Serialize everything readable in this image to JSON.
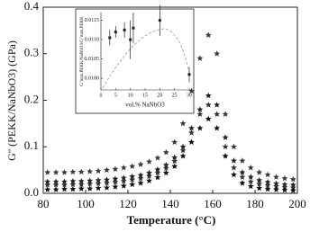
{
  "chart_data": [
    {
      "type": "scatter",
      "xlabel": "Temperature (°C)",
      "ylabel": "G'' (PEKK/NaNbO3) (GPa)",
      "xlim": [
        80,
        200
      ],
      "ylim": [
        0,
        0.4
      ],
      "xticks": [
        80,
        100,
        120,
        140,
        160,
        180,
        200
      ],
      "yticks": [
        {
          "value": 0,
          "label": "0.0"
        },
        0.1,
        0.2,
        0.3,
        0.4
      ],
      "series": [
        {
          "color": "#3a3a3a",
          "x": [
            82,
            86,
            90,
            94,
            98,
            102,
            106,
            110,
            114,
            118,
            122,
            126,
            130,
            134,
            138,
            142,
            146,
            150,
            154,
            158,
            162,
            166,
            170,
            174,
            178,
            182,
            186,
            190,
            194,
            198
          ],
          "values": [
            0.045,
            0.045,
            0.045,
            0.046,
            0.046,
            0.047,
            0.048,
            0.05,
            0.052,
            0.055,
            0.058,
            0.062,
            0.068,
            0.076,
            0.088,
            0.11,
            0.15,
            0.22,
            0.29,
            0.34,
            0.3,
            0.17,
            0.1,
            0.07,
            0.055,
            0.045,
            0.04,
            0.035,
            0.032,
            0.03
          ]
        },
        {
          "color": "#222222",
          "x": [
            82,
            86,
            90,
            94,
            98,
            102,
            106,
            110,
            114,
            118,
            122,
            126,
            130,
            134,
            138,
            142,
            146,
            150,
            154,
            158,
            162,
            166,
            170,
            174,
            178,
            182,
            186,
            190,
            194,
            198
          ],
          "values": [
            0.025,
            0.025,
            0.025,
            0.026,
            0.026,
            0.027,
            0.028,
            0.029,
            0.031,
            0.033,
            0.036,
            0.039,
            0.044,
            0.051,
            0.061,
            0.077,
            0.1,
            0.14,
            0.18,
            0.21,
            0.19,
            0.12,
            0.07,
            0.045,
            0.035,
            0.028,
            0.024,
            0.021,
            0.019,
            0.018
          ]
        },
        {
          "color": "#333333",
          "x": [
            82,
            86,
            90,
            94,
            98,
            102,
            106,
            110,
            114,
            118,
            122,
            126,
            130,
            134,
            138,
            142,
            146,
            150,
            154,
            158,
            162,
            166,
            170,
            174,
            178,
            182,
            186,
            190,
            194,
            198
          ],
          "values": [
            0.018,
            0.018,
            0.018,
            0.019,
            0.019,
            0.02,
            0.021,
            0.022,
            0.024,
            0.026,
            0.029,
            0.032,
            0.037,
            0.044,
            0.054,
            0.069,
            0.092,
            0.13,
            0.17,
            0.19,
            0.17,
            0.1,
            0.055,
            0.035,
            0.025,
            0.02,
            0.017,
            0.015,
            0.013,
            0.012
          ]
        },
        {
          "color": "#111111",
          "x": [
            82,
            86,
            90,
            94,
            98,
            102,
            106,
            110,
            114,
            118,
            122,
            126,
            130,
            134,
            138,
            142,
            146,
            150,
            154,
            158,
            162,
            166,
            170,
            174,
            178,
            182,
            186,
            190,
            194,
            198
          ],
          "values": [
            0.008,
            0.008,
            0.009,
            0.009,
            0.01,
            0.01,
            0.011,
            0.012,
            0.014,
            0.016,
            0.019,
            0.022,
            0.027,
            0.034,
            0.044,
            0.058,
            0.08,
            0.11,
            0.14,
            0.16,
            0.14,
            0.08,
            0.04,
            0.022,
            0.015,
            0.011,
            0.009,
            0.008,
            0.007,
            0.006
          ]
        }
      ]
    },
    {
      "type": "errorbar",
      "xlabel": "vol.% NaNbO3",
      "ylabel": "G''max,PEKK/NaNbO3/G''max,PEKK",
      "xlim": [
        0,
        30
      ],
      "ylim": [
        0.0097,
        0.0117
      ],
      "xticks": [
        0,
        5,
        10,
        15,
        20,
        25,
        30
      ],
      "yticks": [
        {
          "value": 0.01,
          "label": "0.0100"
        },
        0.0105,
        {
          "value": 0.011,
          "label": "0.0110"
        },
        0.0115
      ],
      "color": "#222222",
      "x": [
        3,
        5,
        8,
        10,
        11,
        20,
        30
      ],
      "values": [
        0.01105,
        0.0112,
        0.01125,
        0.011,
        0.0113,
        0.0115,
        0.0101
      ],
      "errors": [
        0.0002,
        0.00015,
        0.0002,
        0.0005,
        0.0004,
        0.0004,
        0.0002
      ]
    }
  ]
}
